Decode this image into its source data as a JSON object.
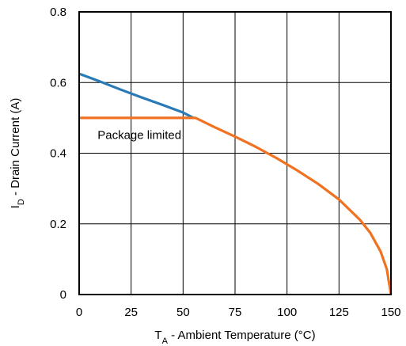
{
  "chart_data": {
    "type": "line",
    "xlabel_main": "T",
    "xlabel_sub": "A",
    "xlabel_rest": " - Ambient Temperature (°C)",
    "ylabel_main": "I",
    "ylabel_sub": "D",
    "ylabel_rest": " - Drain Current (A)",
    "xlim": [
      0,
      150
    ],
    "ylim": [
      0,
      0.8
    ],
    "xticks": [
      0,
      25,
      50,
      75,
      100,
      125,
      150
    ],
    "xtick_labels": [
      "0",
      "25",
      "50",
      "75",
      "100",
      "125",
      "150"
    ],
    "yticks": [
      0,
      0.2,
      0.4,
      0.6,
      0.8
    ],
    "ytick_labels": [
      "0",
      "0.2",
      "0.4",
      "0.6",
      "0.8"
    ],
    "grid": true,
    "series": [
      {
        "color": "#2a7ab8",
        "x": [
          0,
          10,
          20,
          30,
          40,
          50,
          55
        ],
        "y": [
          0.625,
          0.603,
          0.58,
          0.558,
          0.537,
          0.515,
          0.5
        ]
      },
      {
        "color": "#f07120",
        "x": [
          0,
          56,
          65,
          75,
          85,
          95,
          105,
          115,
          125,
          135,
          140,
          145,
          148,
          150
        ],
        "y": [
          0.5,
          0.5,
          0.474,
          0.447,
          0.418,
          0.386,
          0.351,
          0.313,
          0.269,
          0.212,
          0.175,
          0.122,
          0.072,
          0.0
        ]
      }
    ],
    "annotations": [
      {
        "text": "Package limited",
        "x": 29,
        "y": 0.44
      }
    ]
  }
}
